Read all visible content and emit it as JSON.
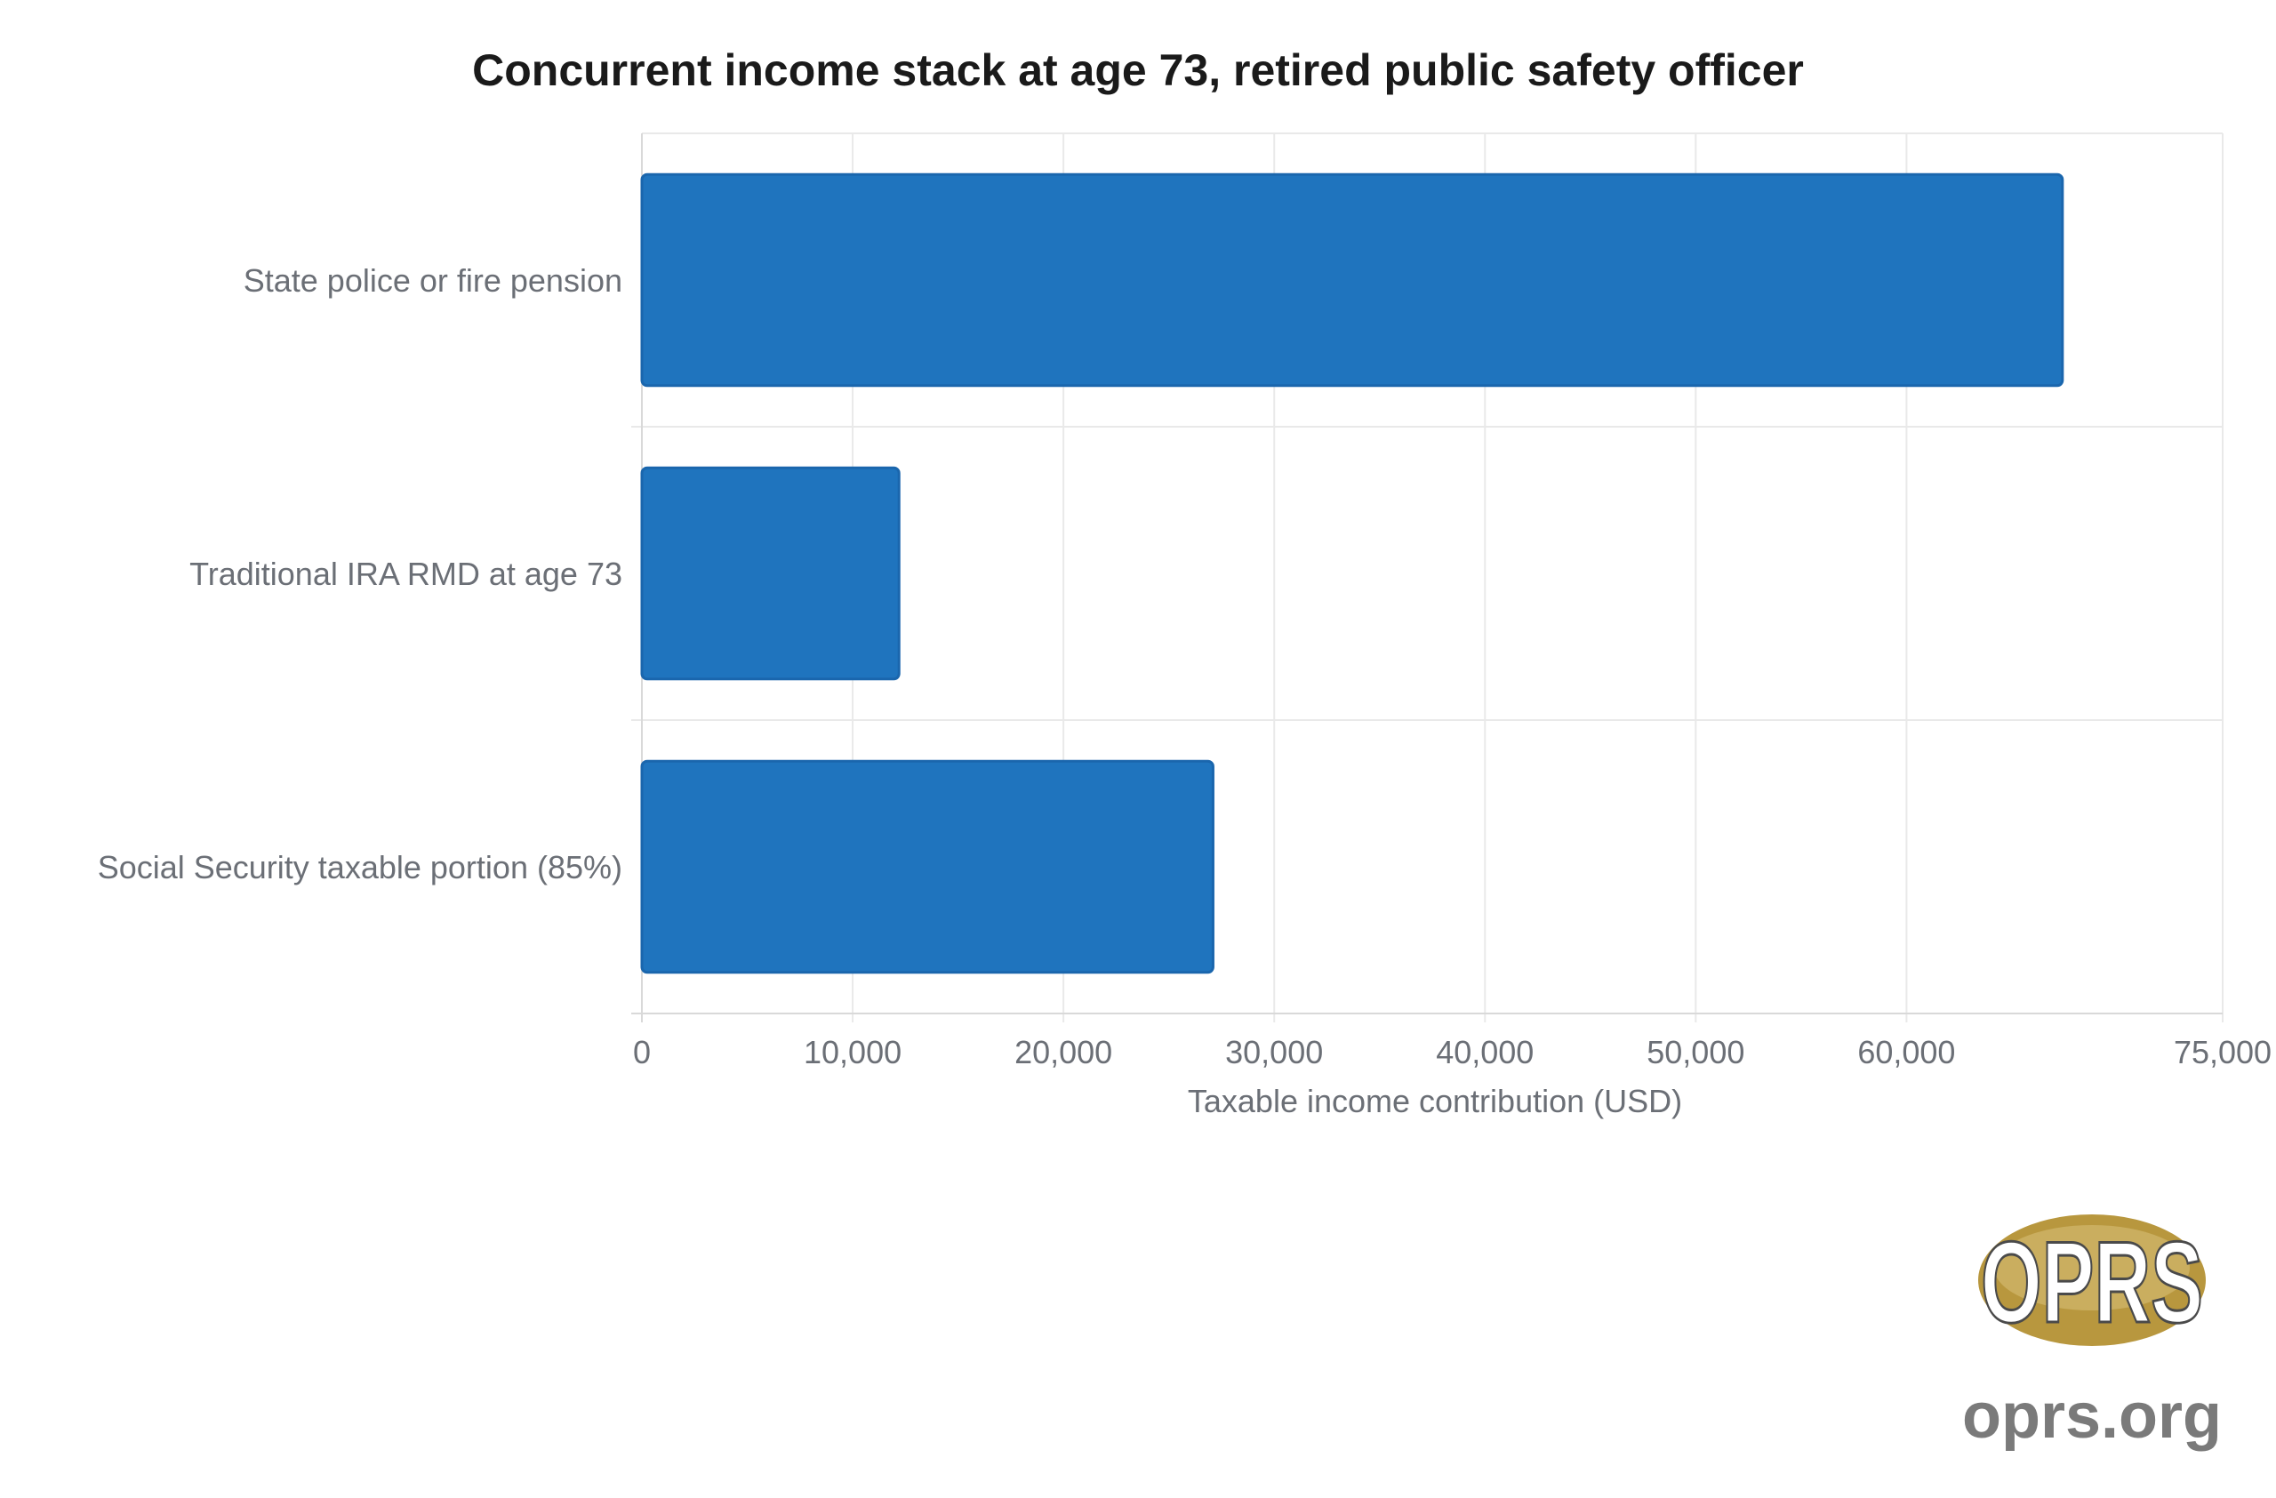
{
  "chart_data": {
    "type": "bar",
    "orientation": "horizontal",
    "title": "Concurrent income stack at age 73, retired public safety officer",
    "categories": [
      "State police or fire pension",
      "Traditional IRA RMD at age 73",
      "Social Security taxable portion (85%)"
    ],
    "values": [
      67400,
      12200,
      27100
    ],
    "xlabel": "Taxable income contribution (USD)",
    "ylabel": "",
    "xlim": [
      0,
      75000
    ],
    "ticks": [
      {
        "value": 0,
        "label": "0"
      },
      {
        "value": 10000,
        "label": "10,000"
      },
      {
        "value": 20000,
        "label": "20,000"
      },
      {
        "value": 30000,
        "label": "30,000"
      },
      {
        "value": 40000,
        "label": "40,000"
      },
      {
        "value": 50000,
        "label": "50,000"
      },
      {
        "value": 60000,
        "label": "60,000"
      },
      {
        "value": 75000,
        "label": "75,000"
      }
    ],
    "grid": true,
    "bar_color": "#1f74be",
    "bar_border_color": "#1a66ad"
  },
  "branding": {
    "logo_text": "OPRS",
    "site": "oprs.org",
    "logo_gold": "#b8973e",
    "site_color": "#7a7a7a"
  }
}
